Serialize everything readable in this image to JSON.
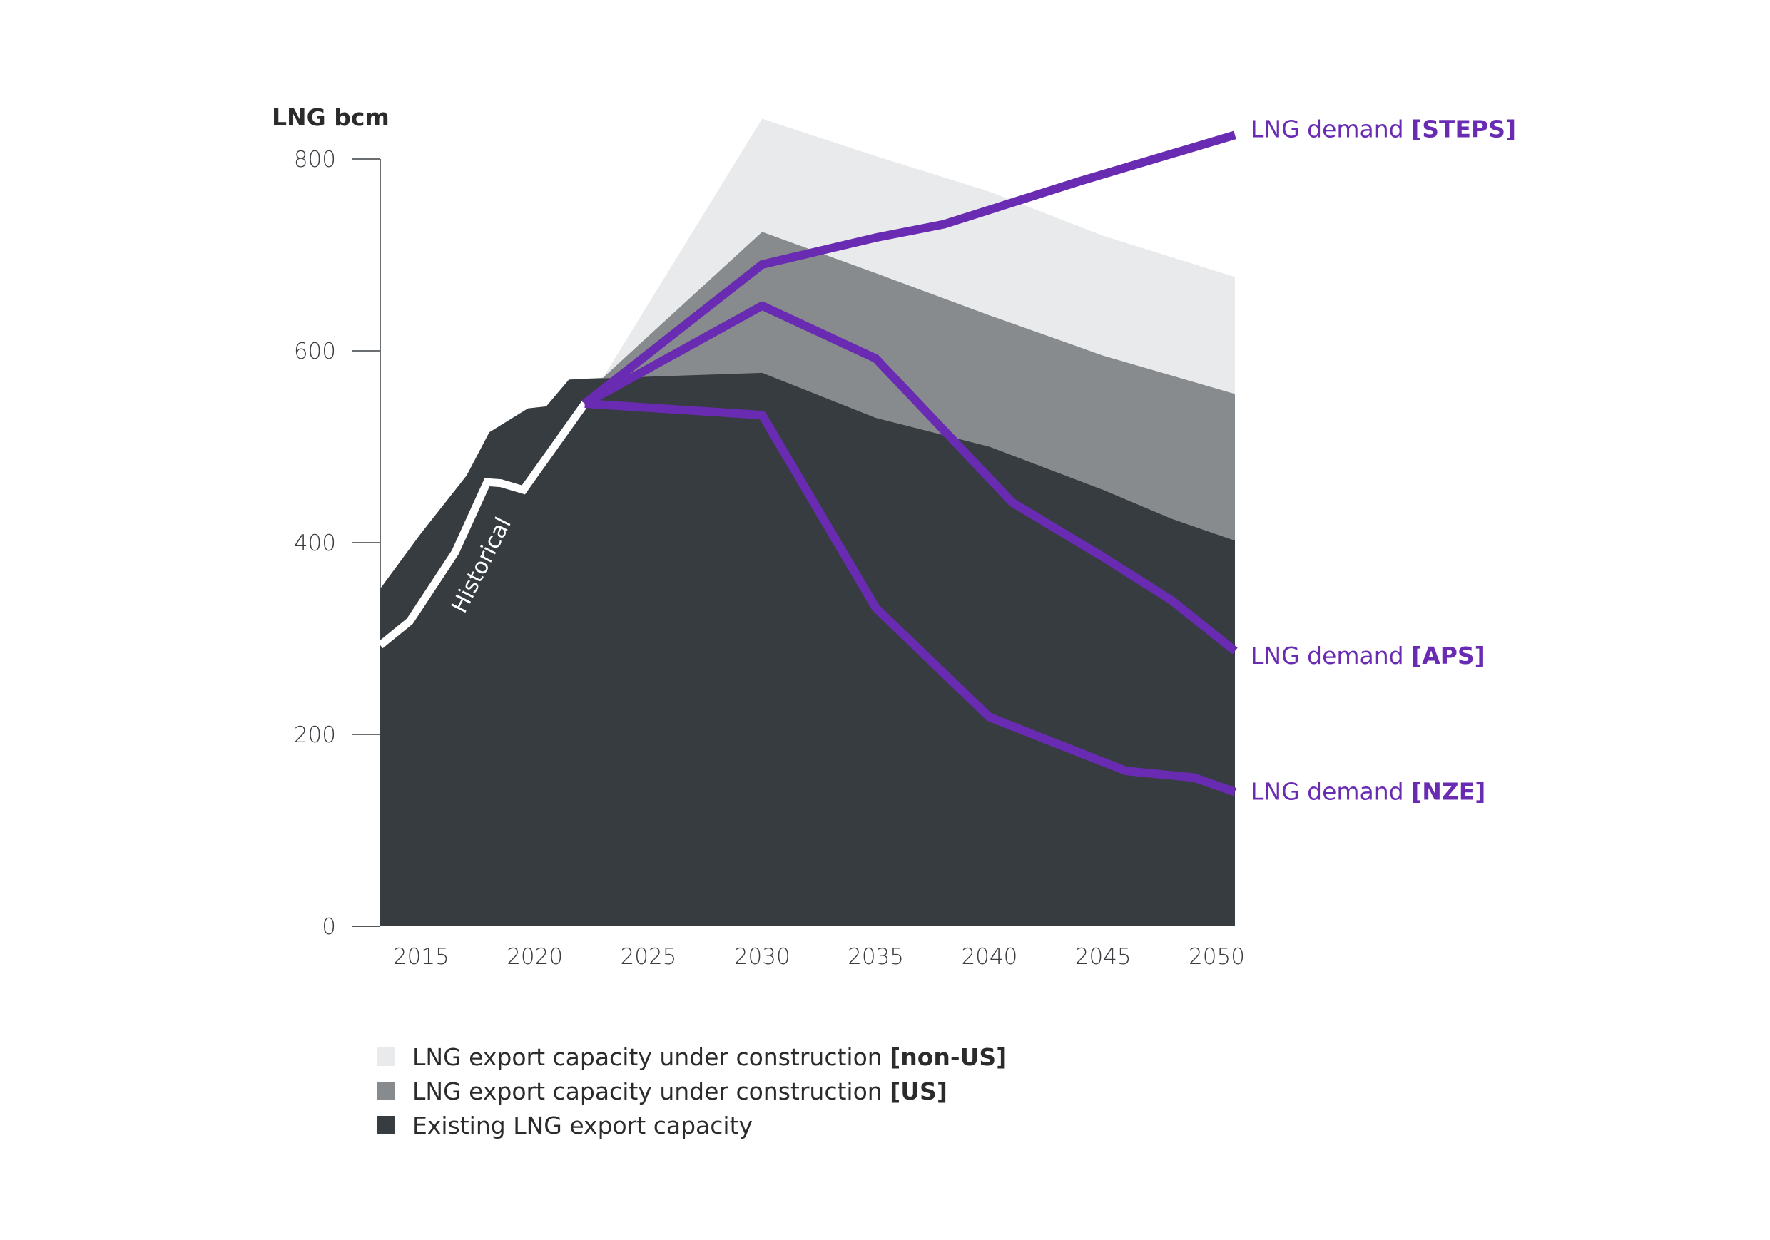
{
  "chart_data": {
    "type": "area",
    "ylabel": "LNG bcm",
    "ylim": [
      0,
      800
    ],
    "yticks": [
      0,
      200,
      400,
      600,
      800
    ],
    "xlim": [
      2013.2,
      2050.8
    ],
    "xticks": [
      2015,
      2020,
      2025,
      2030,
      2035,
      2040,
      2045,
      2050
    ],
    "series": [
      {
        "name": "Existing LNG export capacity",
        "color": "#373c41",
        "points": [
          [
            2013.2,
            352
          ],
          [
            2015,
            410
          ],
          [
            2017,
            470
          ],
          [
            2018,
            515
          ],
          [
            2019.7,
            540
          ],
          [
            2020.5,
            542
          ],
          [
            2021.5,
            570
          ],
          [
            2025,
            573
          ],
          [
            2030,
            577
          ],
          [
            2035,
            530
          ],
          [
            2040,
            500
          ],
          [
            2045,
            455
          ],
          [
            2048,
            425
          ],
          [
            2050.8,
            402
          ]
        ]
      },
      {
        "name": "LNG export capacity under construction",
        "tag": "[US]",
        "color": "#888b8d",
        "points": [
          [
            2013.2,
            352
          ],
          [
            2015,
            410
          ],
          [
            2017,
            470
          ],
          [
            2018,
            515
          ],
          [
            2019.7,
            540
          ],
          [
            2020.5,
            542
          ],
          [
            2021.5,
            570
          ],
          [
            2023,
            572
          ],
          [
            2030,
            724
          ],
          [
            2035,
            681
          ],
          [
            2040,
            637
          ],
          [
            2045,
            595
          ],
          [
            2050.8,
            555
          ]
        ]
      },
      {
        "name": "LNG export capacity under construction",
        "tag": "[non-US]",
        "color": "#e9eaeb",
        "points": [
          [
            2013.2,
            352
          ],
          [
            2015,
            410
          ],
          [
            2017,
            470
          ],
          [
            2018,
            515
          ],
          [
            2019.7,
            540
          ],
          [
            2020.5,
            542
          ],
          [
            2021.5,
            570
          ],
          [
            2023,
            572
          ],
          [
            2030,
            842
          ],
          [
            2035,
            803
          ],
          [
            2040,
            766
          ],
          [
            2045,
            720
          ],
          [
            2050.8,
            677
          ]
        ]
      }
    ],
    "historical": {
      "label": "Historical",
      "color": "#ffffff",
      "points": [
        [
          2013.2,
          293
        ],
        [
          2014.5,
          318
        ],
        [
          2016.5,
          390
        ],
        [
          2017.9,
          463
        ],
        [
          2018.5,
          462
        ],
        [
          2019.5,
          455
        ],
        [
          2022.2,
          545
        ]
      ]
    },
    "lines": [
      {
        "name": "LNG demand",
        "tag": "[STEPS]",
        "color": "#6a2bb3",
        "points": [
          [
            2022.2,
            545
          ],
          [
            2030,
            690
          ],
          [
            2035,
            718
          ],
          [
            2038,
            732
          ],
          [
            2044,
            777
          ],
          [
            2050.8,
            825
          ]
        ]
      },
      {
        "name": "LNG demand",
        "tag": "[APS]",
        "color": "#6a2bb3",
        "points": [
          [
            2022.2,
            545
          ],
          [
            2030,
            647
          ],
          [
            2035,
            592
          ],
          [
            2041,
            442
          ],
          [
            2045,
            385
          ],
          [
            2048,
            340
          ],
          [
            2050.8,
            287
          ]
        ]
      },
      {
        "name": "LNG demand",
        "tag": "[NZE]",
        "color": "#6a2bb3",
        "points": [
          [
            2022.2,
            545
          ],
          [
            2030,
            533
          ],
          [
            2035,
            332
          ],
          [
            2040,
            218
          ],
          [
            2046,
            162
          ],
          [
            2049,
            155
          ],
          [
            2050.8,
            140
          ]
        ]
      }
    ],
    "legend": [
      {
        "text": "LNG export capacity under construction ",
        "tag": "[non-US]",
        "color": "#e9eaeb"
      },
      {
        "text": "LNG export capacity under construction ",
        "tag": "[US]",
        "color": "#888b8d"
      },
      {
        "text": "Existing LNG export capacity",
        "tag": "",
        "color": "#373c41"
      }
    ]
  }
}
